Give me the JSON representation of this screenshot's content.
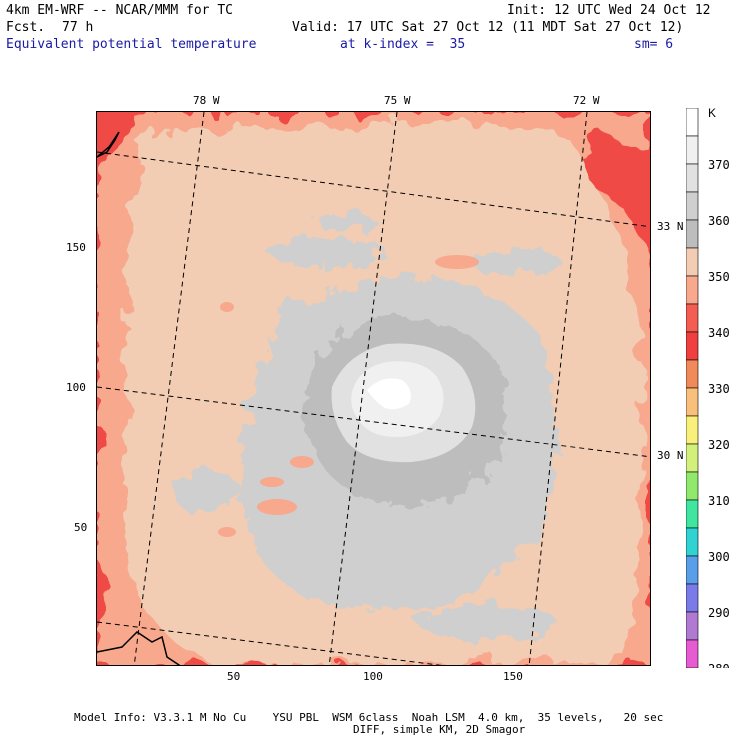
{
  "header": {
    "model_title": "4km EM-WRF -- NCAR/MMM for TC",
    "init": "Init: 12 UTC Wed 24 Oct 12",
    "fcst_label": "Fcst.",
    "fcst_value": "77 h",
    "valid": "Valid: 17 UTC Sat 27 Oct 12 (11 MDT Sat 27 Oct 12)",
    "field": "Equivalent potential temperature",
    "level": "at k-index =  35",
    "smoothing": "sm= 6"
  },
  "map": {
    "longitude_labels": [
      "78 W",
      "75 W",
      "72 W"
    ],
    "latitude_labels": [
      "33 N",
      "30 N"
    ],
    "x_ticks": [
      "50",
      "100",
      "150"
    ],
    "y_ticks": [
      "150",
      "100",
      "50"
    ]
  },
  "colorbar": {
    "unit": "K",
    "labels": [
      "370",
      "360",
      "350",
      "340",
      "330",
      "320",
      "310",
      "300",
      "290",
      "280"
    ],
    "colors": [
      "#ffffff",
      "#f0f0f0",
      "#e1e1e1",
      "#cfcfcf",
      "#bdbdbd",
      "#f2cdb3",
      "#f7a88d",
      "#f45d52",
      "#ef3f3f",
      "#f08a5a",
      "#f8c07a",
      "#f8f07a",
      "#d2f07a",
      "#90e86c",
      "#40e6a0",
      "#30d2d2",
      "#5a9ee8",
      "#7a7ae8",
      "#b07ad2",
      "#e65ad2"
    ]
  },
  "footer": {
    "line1": "Model Info: V3.3.1 M No Cu    YSU PBL  WSM 6class  Noah LSM  4.0 km,  35 levels,   20 sec",
    "line2": "DIFF, simple KM, 2D Smagor"
  }
}
